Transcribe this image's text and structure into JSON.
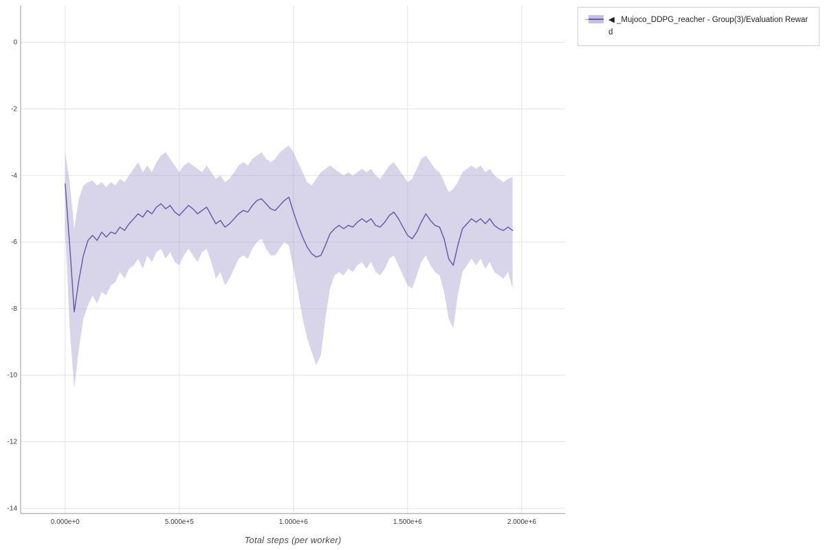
{
  "chart_data": {
    "type": "line",
    "title": "",
    "xlabel": "Total steps (per worker)",
    "ylabel": "",
    "grid": true,
    "legend_position": "top-right-outside",
    "xlim": [
      -195000,
      2190000
    ],
    "ylim": [
      -14.16,
      1.11
    ],
    "x_ticks": [
      {
        "v": 0,
        "label": "0.000e+0"
      },
      {
        "v": 500000,
        "label": "5.000e+5"
      },
      {
        "v": 1000000,
        "label": "1.000e+6"
      },
      {
        "v": 1500000,
        "label": "1.500e+6"
      },
      {
        "v": 2000000,
        "label": "2.000e+6"
      }
    ],
    "y_ticks": [
      {
        "v": 0,
        "label": "0"
      },
      {
        "v": -2,
        "label": "-2"
      },
      {
        "v": -4,
        "label": "-4"
      },
      {
        "v": -6,
        "label": "-6"
      },
      {
        "v": -8,
        "label": "-8"
      },
      {
        "v": -10,
        "label": "-10"
      },
      {
        "v": -12,
        "label": "-12"
      },
      {
        "v": -14,
        "label": "-14"
      }
    ],
    "colors": {
      "line": "#675da5",
      "band": "#a9a0d0",
      "band_opacity": 0.45,
      "grid": "#e3e3e3",
      "axis": "#9a9a9a",
      "tick_text": "#3a3a3a"
    },
    "series": [
      {
        "name": "◀ _Mujoco_DDPG_reacher - Group(3)/Evaluation Reward",
        "point_format": [
          "x",
          "mean",
          "lower",
          "upper"
        ],
        "points": [
          [
            0,
            -4.25,
            -5.6,
            -3.3
          ],
          [
            20000,
            -6.1,
            -8.6,
            -4.2
          ],
          [
            40000,
            -8.1,
            -10.4,
            -5.6
          ],
          [
            60000,
            -7.15,
            -9.2,
            -4.7
          ],
          [
            80000,
            -6.4,
            -8.3,
            -4.3
          ],
          [
            100000,
            -5.95,
            -7.9,
            -4.2
          ],
          [
            120000,
            -5.8,
            -7.6,
            -4.15
          ],
          [
            140000,
            -5.95,
            -7.85,
            -4.3
          ],
          [
            160000,
            -5.7,
            -7.5,
            -4.2
          ],
          [
            180000,
            -5.85,
            -7.6,
            -4.35
          ],
          [
            200000,
            -5.7,
            -7.3,
            -4.2
          ],
          [
            220000,
            -5.75,
            -7.2,
            -4.3
          ],
          [
            240000,
            -5.55,
            -6.9,
            -4.1
          ],
          [
            260000,
            -5.65,
            -7.1,
            -4.2
          ],
          [
            280000,
            -5.45,
            -6.8,
            -4.0
          ],
          [
            300000,
            -5.3,
            -6.7,
            -3.8
          ],
          [
            320000,
            -5.15,
            -6.5,
            -3.6
          ],
          [
            340000,
            -5.25,
            -6.8,
            -3.9
          ],
          [
            360000,
            -5.05,
            -6.4,
            -3.7
          ],
          [
            380000,
            -5.15,
            -6.6,
            -3.9
          ],
          [
            400000,
            -4.95,
            -6.3,
            -3.6
          ],
          [
            420000,
            -4.85,
            -6.2,
            -3.4
          ],
          [
            440000,
            -5.0,
            -6.5,
            -3.3
          ],
          [
            460000,
            -4.9,
            -6.3,
            -3.5
          ],
          [
            480000,
            -5.1,
            -6.6,
            -3.7
          ],
          [
            500000,
            -5.2,
            -6.7,
            -3.9
          ],
          [
            520000,
            -5.05,
            -6.4,
            -3.7
          ],
          [
            540000,
            -4.9,
            -6.2,
            -3.6
          ],
          [
            560000,
            -5.0,
            -6.4,
            -3.7
          ],
          [
            580000,
            -5.15,
            -6.6,
            -3.8
          ],
          [
            600000,
            -5.05,
            -6.3,
            -3.9
          ],
          [
            620000,
            -4.95,
            -6.2,
            -3.7
          ],
          [
            640000,
            -5.2,
            -6.6,
            -3.9
          ],
          [
            660000,
            -5.45,
            -7.1,
            -4.1
          ],
          [
            680000,
            -5.35,
            -6.9,
            -4.0
          ],
          [
            700000,
            -5.55,
            -7.3,
            -4.2
          ],
          [
            720000,
            -5.45,
            -7.1,
            -4.1
          ],
          [
            740000,
            -5.3,
            -6.8,
            -3.9
          ],
          [
            760000,
            -5.15,
            -6.5,
            -3.7
          ],
          [
            780000,
            -5.05,
            -6.4,
            -3.6
          ],
          [
            800000,
            -5.1,
            -6.5,
            -3.7
          ],
          [
            820000,
            -4.9,
            -6.2,
            -3.5
          ],
          [
            840000,
            -4.75,
            -6.0,
            -3.4
          ],
          [
            860000,
            -4.7,
            -5.9,
            -3.3
          ],
          [
            880000,
            -4.85,
            -6.2,
            -3.5
          ],
          [
            900000,
            -5.0,
            -6.4,
            -3.6
          ],
          [
            920000,
            -5.05,
            -6.4,
            -3.5
          ],
          [
            940000,
            -4.9,
            -6.2,
            -3.3
          ],
          [
            960000,
            -4.75,
            -6.0,
            -3.2
          ],
          [
            980000,
            -4.65,
            -6.1,
            -3.1
          ],
          [
            1000000,
            -5.1,
            -6.8,
            -3.3
          ],
          [
            1020000,
            -5.5,
            -7.5,
            -3.6
          ],
          [
            1040000,
            -5.85,
            -8.3,
            -3.9
          ],
          [
            1060000,
            -6.15,
            -8.9,
            -4.2
          ],
          [
            1080000,
            -6.35,
            -9.3,
            -4.3
          ],
          [
            1100000,
            -6.45,
            -9.7,
            -4.1
          ],
          [
            1120000,
            -6.4,
            -9.4,
            -3.9
          ],
          [
            1140000,
            -6.1,
            -8.3,
            -3.8
          ],
          [
            1160000,
            -5.75,
            -7.4,
            -3.7
          ],
          [
            1180000,
            -5.6,
            -7.0,
            -3.8
          ],
          [
            1200000,
            -5.5,
            -6.9,
            -3.9
          ],
          [
            1220000,
            -5.6,
            -7.0,
            -4.0
          ],
          [
            1240000,
            -5.5,
            -6.8,
            -3.9
          ],
          [
            1260000,
            -5.55,
            -6.9,
            -4.0
          ],
          [
            1280000,
            -5.4,
            -6.7,
            -3.9
          ],
          [
            1300000,
            -5.3,
            -6.6,
            -3.8
          ],
          [
            1320000,
            -5.4,
            -6.8,
            -3.9
          ],
          [
            1340000,
            -5.3,
            -6.6,
            -3.8
          ],
          [
            1360000,
            -5.5,
            -6.9,
            -4.0
          ],
          [
            1380000,
            -5.55,
            -7.0,
            -4.1
          ],
          [
            1400000,
            -5.4,
            -6.8,
            -3.9
          ],
          [
            1420000,
            -5.2,
            -6.5,
            -3.7
          ],
          [
            1440000,
            -5.1,
            -6.4,
            -3.6
          ],
          [
            1460000,
            -5.3,
            -6.7,
            -3.8
          ],
          [
            1480000,
            -5.55,
            -7.0,
            -4.0
          ],
          [
            1500000,
            -5.8,
            -7.3,
            -4.2
          ],
          [
            1520000,
            -5.9,
            -7.4,
            -4.1
          ],
          [
            1540000,
            -5.7,
            -7.0,
            -3.8
          ],
          [
            1560000,
            -5.4,
            -6.6,
            -3.5
          ],
          [
            1580000,
            -5.15,
            -6.4,
            -3.4
          ],
          [
            1600000,
            -5.35,
            -6.7,
            -3.6
          ],
          [
            1620000,
            -5.5,
            -6.9,
            -3.8
          ],
          [
            1640000,
            -5.55,
            -7.0,
            -3.9
          ],
          [
            1660000,
            -5.9,
            -7.5,
            -4.2
          ],
          [
            1680000,
            -6.5,
            -8.3,
            -4.5
          ],
          [
            1700000,
            -6.7,
            -8.6,
            -4.4
          ],
          [
            1720000,
            -6.1,
            -7.6,
            -4.2
          ],
          [
            1740000,
            -5.6,
            -6.9,
            -3.9
          ],
          [
            1760000,
            -5.45,
            -6.7,
            -3.8
          ],
          [
            1780000,
            -5.3,
            -6.5,
            -3.7
          ],
          [
            1800000,
            -5.4,
            -6.7,
            -3.8
          ],
          [
            1820000,
            -5.3,
            -6.5,
            -3.7
          ],
          [
            1840000,
            -5.45,
            -6.8,
            -3.9
          ],
          [
            1860000,
            -5.3,
            -6.6,
            -3.8
          ],
          [
            1880000,
            -5.5,
            -6.9,
            -4.0
          ],
          [
            1900000,
            -5.6,
            -7.0,
            -4.1
          ],
          [
            1920000,
            -5.65,
            -7.1,
            -4.2
          ],
          [
            1940000,
            -5.55,
            -6.9,
            -4.1
          ],
          [
            1960000,
            -5.65,
            -7.4,
            -4.05
          ]
        ]
      }
    ]
  }
}
